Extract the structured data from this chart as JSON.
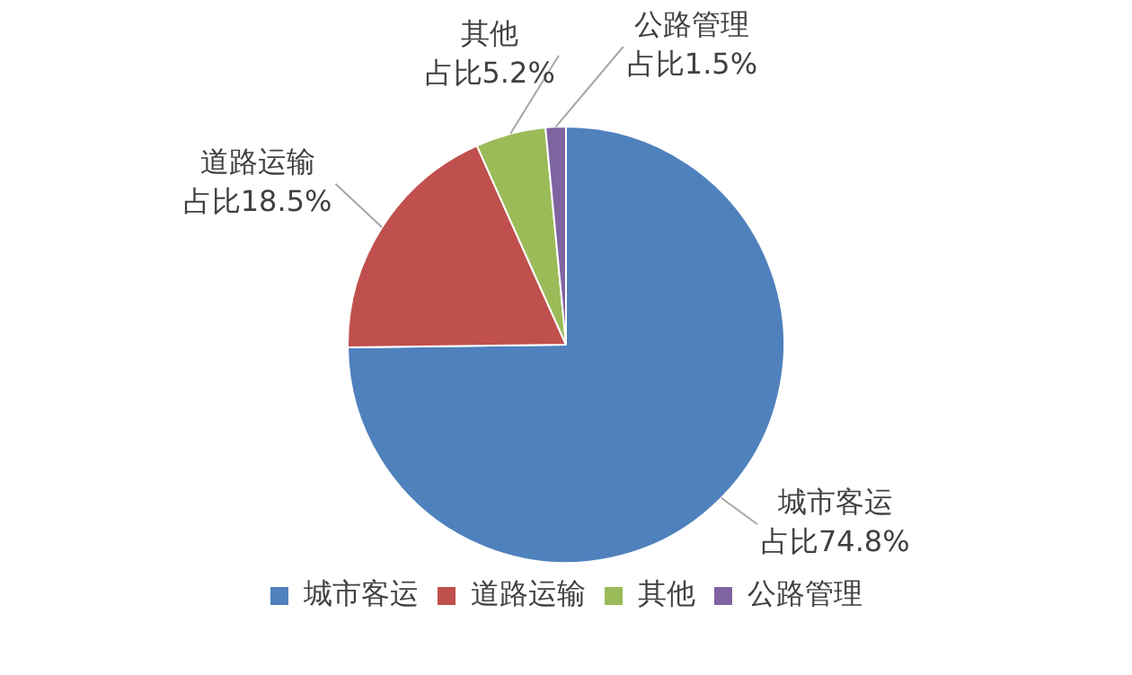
{
  "chart_data": {
    "type": "pie",
    "categories": [
      "城市客运",
      "道路运输",
      "其他",
      "公路管理"
    ],
    "values": [
      74.8,
      18.5,
      5.2,
      1.5
    ],
    "colors": [
      "#4f81bd",
      "#c0504d",
      "#9bbb59",
      "#8064a2"
    ],
    "value_labels": [
      "占比74.8%",
      "占比18.5%",
      "占比5.2%",
      "占比1.5%"
    ],
    "legend": "bottom"
  }
}
